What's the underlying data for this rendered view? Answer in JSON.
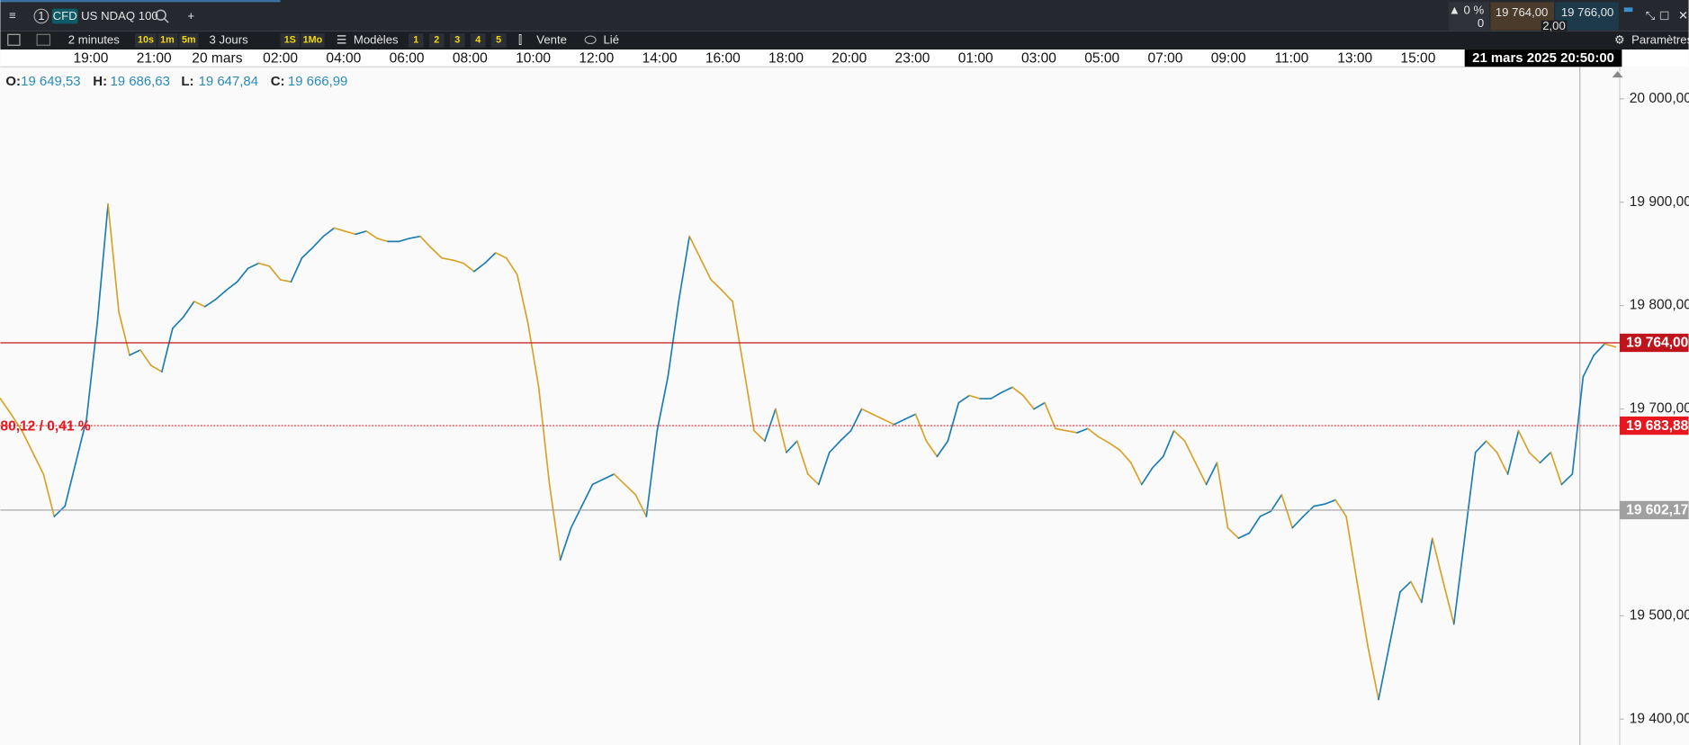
{
  "toolbar": {
    "tab_number": "1",
    "instrument_badge": "CFD",
    "instrument": "US NDAQ 100",
    "change_pct": "▲ 0 %",
    "change_value": "0",
    "bid": "19 764,00",
    "ask": "19 766,00",
    "spread": "2,00"
  },
  "subbar": {
    "interval": "2 minutes",
    "quick_intervals": [
      "10s",
      "1m",
      "5m"
    ],
    "range": "3 Jours",
    "range_buttons": [
      "1S",
      "1Mo"
    ],
    "templates": "Modèles",
    "layouts": [
      "1",
      "2",
      "3",
      "4",
      "5"
    ],
    "sell": "Vente",
    "linked": "Lié",
    "settings": "Paramètres"
  },
  "ohlc": [
    {
      "label": "O:",
      "value": "19 649,53"
    },
    {
      "label": "H:",
      "value": "19 686,63"
    },
    {
      "label": "L:",
      "value": "19 647,84"
    },
    {
      "label": "C:",
      "value": "19 666,99"
    }
  ],
  "chart_data": {
    "type": "line",
    "x_labels": [
      "19:00",
      "21:00",
      "20 mars",
      "02:00",
      "04:00",
      "06:00",
      "08:00",
      "10:00",
      "12:00",
      "14:00",
      "16:00",
      "18:00",
      "20:00",
      "23:00",
      "01:00",
      "03:00",
      "05:00",
      "07:00",
      "09:00",
      "11:00",
      "13:00",
      "15:00"
    ],
    "cursor_label": "21 mars 2025 20:50:00",
    "ylim": [
      19375,
      20031
    ],
    "yticks": [
      {
        "value": 19400,
        "label": "19 400,00"
      },
      {
        "value": 19500,
        "label": "19 500,00"
      },
      {
        "value": 19700,
        "label": "19 700,00"
      },
      {
        "value": 19800,
        "label": "19 800,00"
      },
      {
        "value": 19900,
        "label": "19 900,00"
      },
      {
        "value": 20000,
        "label": "20 000,00"
      }
    ],
    "up_color": "#1b7db3",
    "down_color": "#d8a228",
    "values": [
      19710,
      19695,
      19679,
      19658,
      19637,
      19596,
      19606,
      19648,
      19690,
      19783,
      19898,
      19794,
      19752,
      19757,
      19742,
      19736,
      19778,
      19789,
      19804,
      19799,
      19806,
      19815,
      19823,
      19836,
      19841,
      19838,
      19825,
      19823,
      19846,
      19856,
      19867,
      19875,
      19872,
      19869,
      19872,
      19865,
      19862,
      19862,
      19865,
      19867,
      19856,
      19846,
      19844,
      19841,
      19833,
      19841,
      19851,
      19846,
      19830,
      19783,
      19721,
      19627,
      19554,
      19585,
      19606,
      19627,
      19632,
      19637,
      19627,
      19617,
      19596,
      19679,
      19731,
      19804,
      19867,
      19846,
      19825,
      19815,
      19804,
      19742,
      19679,
      19669,
      19700,
      19658,
      19669,
      19637,
      19627,
      19658,
      19669,
      19679,
      19700,
      19695,
      19690,
      19685,
      19690,
      19695,
      19669,
      19654,
      19669,
      19706,
      19713,
      19710,
      19710,
      19716,
      19721,
      19713,
      19700,
      19706,
      19681,
      19679,
      19677,
      19681,
      19673,
      19667,
      19660,
      19648,
      19627,
      19643,
      19654,
      19679,
      19669,
      19648,
      19627,
      19648,
      19585,
      19575,
      19580,
      19596,
      19601,
      19617,
      19585,
      19596,
      19606,
      19608,
      19612,
      19596,
      19533,
      19471,
      19419,
      19471,
      19523,
      19533,
      19513,
      19575,
      19533,
      19492,
      19575,
      19658,
      19669,
      19658,
      19637,
      19679,
      19658,
      19648,
      19658,
      19627,
      19637,
      19731,
      19752,
      19763,
      19760
    ],
    "levels": [
      {
        "value": 19764,
        "label": "19 764,00",
        "color": "#c0141c",
        "style": "solid"
      },
      {
        "value": 19683.88,
        "label": "19 683,88",
        "color": "#e8161e",
        "style": "dotted"
      },
      {
        "value": 19602.17,
        "label": "19 602,17",
        "color": "#a0a0a0",
        "style": "solid"
      }
    ],
    "change_label": "80,12 / 0,41 %"
  }
}
